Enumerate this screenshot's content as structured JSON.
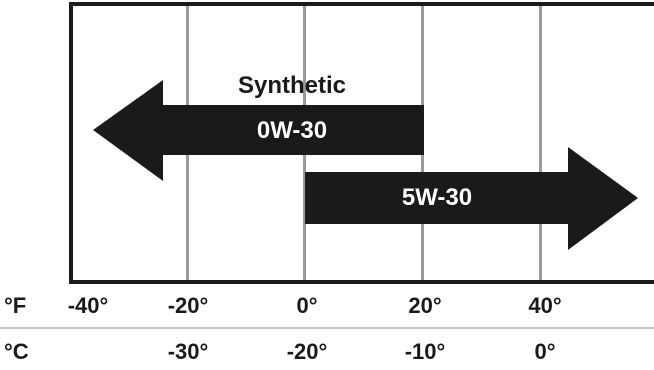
{
  "labels": {
    "oil_type": "Synthetic",
    "fahrenheit_unit": "°F",
    "celsius_unit": "°C"
  },
  "fahrenheit_ticks": [
    "-40°",
    "-20°",
    "0°",
    "20°",
    "40°"
  ],
  "celsius_ticks": [
    "-30°",
    "-20°",
    "-10°",
    "0°"
  ],
  "grades": [
    {
      "name": "0W-30",
      "direction": "left",
      "from_f": 20,
      "to_f": -40
    },
    {
      "name": "5W-30",
      "direction": "right",
      "from_f": 0,
      "to_f": 60
    }
  ],
  "colors": {
    "arrow": "#1a1a1a",
    "grid": "#9a9a9a",
    "frame": "#1a1a1a",
    "arrow_text": "#ffffff",
    "label_text": "#1a1a1a"
  }
}
